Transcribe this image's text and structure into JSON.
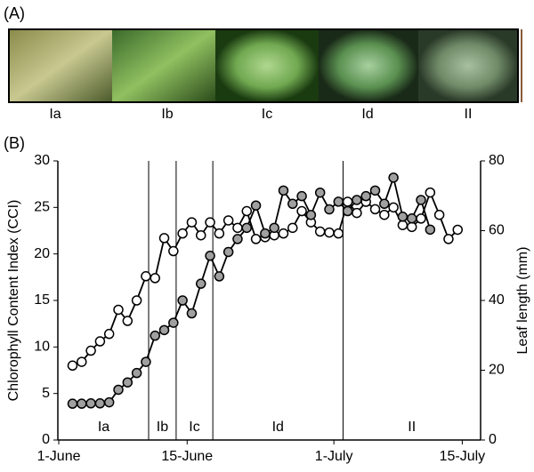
{
  "panel_labels": [
    "(A)",
    "(B)"
  ],
  "photos": [
    "Ia",
    "Ib",
    "Ic",
    "Id",
    "II"
  ],
  "chart_data": {
    "type": "line",
    "y_label": "Chlorophyll Content Index (CCI)",
    "y2_label": "Leaf length (mm)",
    "xlim": [
      -0.1,
      46
    ],
    "xticks": [
      {
        "value": 0,
        "label": "1-June"
      },
      {
        "value": 14,
        "label": "15-June"
      },
      {
        "value": 30,
        "label": "1-July"
      },
      {
        "value": 44,
        "label": "15-July"
      }
    ],
    "ylim": [
      0,
      30
    ],
    "yticks": [
      0,
      5,
      10,
      15,
      20,
      25,
      30
    ],
    "y2lim": [
      0,
      80
    ],
    "y2ticks": [
      0,
      20,
      40,
      60,
      80
    ],
    "stage_boundaries": [
      9.8,
      12.8,
      16.8,
      31
    ],
    "stages": [
      "Ia",
      "Ib",
      "Ic",
      "Id",
      "II"
    ],
    "series": [
      {
        "color": "#ffffff",
        "x": [
          1.5,
          2.5,
          3.5,
          4.5,
          5.5,
          6.5,
          7.5,
          8.5,
          9.5,
          10.5,
          11.5,
          12.5,
          13.5,
          14.5,
          15.5,
          16.5,
          17.5,
          18.5,
          19.5,
          20.5,
          21.5,
          22.5,
          23.5,
          24.5,
          25.5,
          26.5,
          27.5,
          28.5,
          29.5,
          30.5,
          31.5,
          32.5,
          33.5,
          34.5,
          35.5,
          36.5,
          37.5,
          38.5,
          39.5,
          40.5,
          41.5,
          42.5,
          43.5
        ],
        "values": [
          8.0,
          8.4,
          9.6,
          10.6,
          11.4,
          14.0,
          12.8,
          15.0,
          17.6,
          17.4,
          21.7,
          20.3,
          22.2,
          23.4,
          22.0,
          23.4,
          22.2,
          23.6,
          22.8,
          24.6,
          21.6,
          21.8,
          22.0,
          22.2,
          22.8,
          24.6,
          23.4,
          22.4,
          22.3,
          22.2,
          25.6,
          24.4,
          25.6,
          24.8,
          24.2,
          25.0,
          23.1,
          22.9,
          23.8,
          26.6,
          24.2,
          21.6,
          22.6
        ]
      },
      {
        "color": "#a0a0a0",
        "axis": "y2",
        "x": [
          1.5,
          2.5,
          3.5,
          4.5,
          5.5,
          6.5,
          7.5,
          8.5,
          9.5,
          10.5,
          11.5,
          12.5,
          13.5,
          14.5,
          15.5,
          16.5,
          17.5,
          18.5,
          19.5,
          20.5,
          21.5,
          22.5,
          23.5,
          24.5,
          25.5,
          26.5,
          27.5,
          28.5,
          29.5,
          30.5,
          31.5,
          32.5,
          33.5,
          34.5,
          35.5,
          36.5,
          37.5,
          38.5,
          39.5,
          40.5
        ],
        "values": [
          10.4,
          10.4,
          10.5,
          10.5,
          10.8,
          14.4,
          16.5,
          19.2,
          22.4,
          29.9,
          31.5,
          33.6,
          40.0,
          36.3,
          44.8,
          52.8,
          46.9,
          53.9,
          57.6,
          60.8,
          67.2,
          59.2,
          60.8,
          71.5,
          67.7,
          69.9,
          64.5,
          70.9,
          66.1,
          68.3,
          65.6,
          68.8,
          69.9,
          71.5,
          67.7,
          75.2,
          64.0,
          63.5,
          68.8,
          60.3
        ]
      }
    ]
  }
}
